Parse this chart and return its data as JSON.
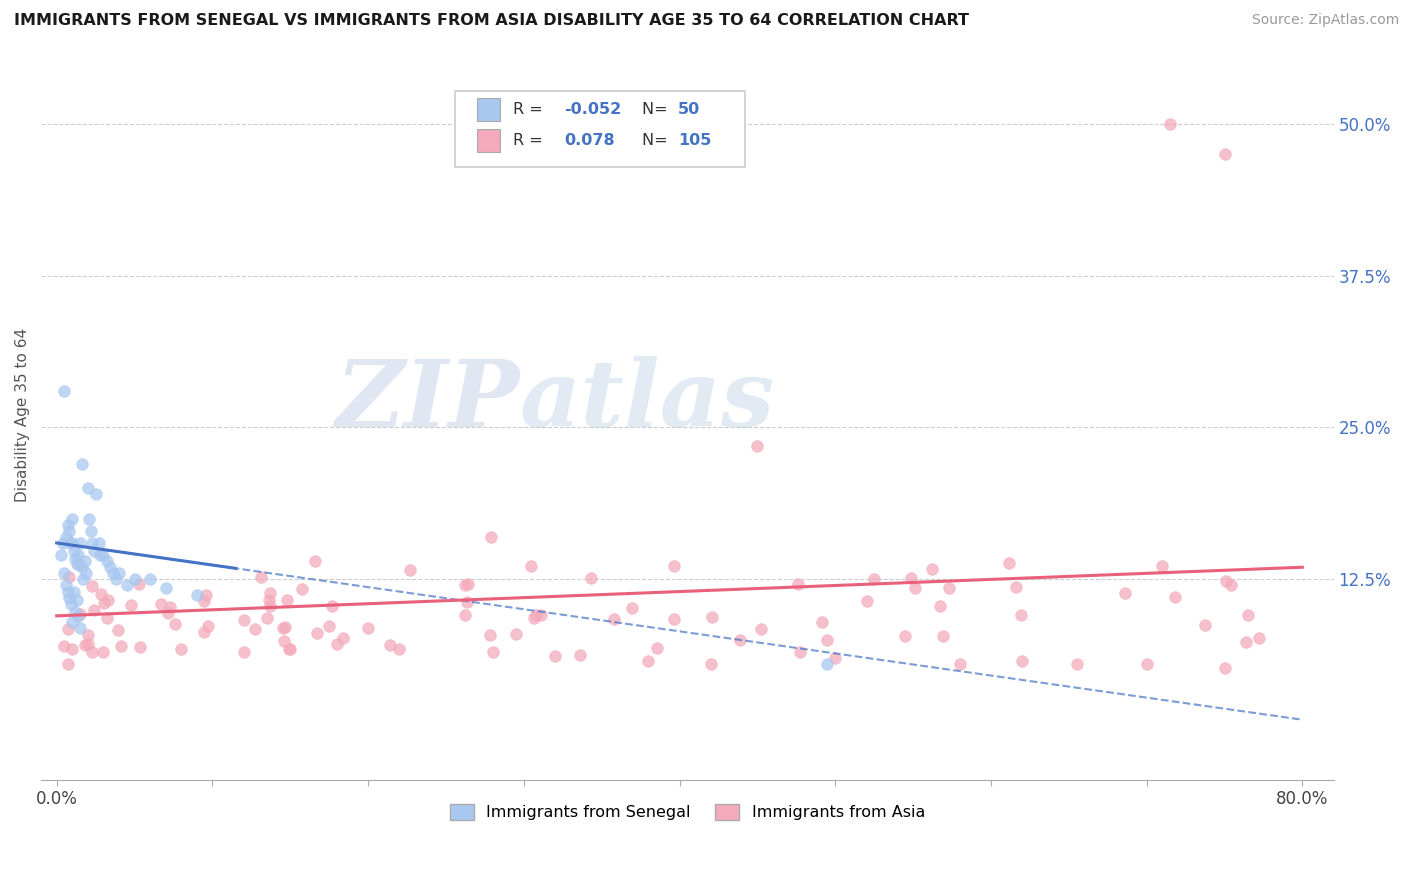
{
  "title": "IMMIGRANTS FROM SENEGAL VS IMMIGRANTS FROM ASIA DISABILITY AGE 35 TO 64 CORRELATION CHART",
  "source": "Source: ZipAtlas.com",
  "ylabel": "Disability Age 35 to 64",
  "xlim": [
    -0.01,
    0.82
  ],
  "ylim": [
    -0.04,
    0.56
  ],
  "xtick_positions": [
    0.0,
    0.1,
    0.2,
    0.3,
    0.4,
    0.5,
    0.6,
    0.7,
    0.8
  ],
  "xticklabels": [
    "0.0%",
    "",
    "",
    "",
    "",
    "",
    "",
    "",
    "80.0%"
  ],
  "ytick_right_labels": [
    "50.0%",
    "37.5%",
    "25.0%",
    "12.5%"
  ],
  "ytick_right_values": [
    0.5,
    0.375,
    0.25,
    0.125
  ],
  "legend_blue_label": "Immigrants from Senegal",
  "legend_pink_label": "Immigrants from Asia",
  "blue_color": "#A8C8F0",
  "pink_color": "#F4AABB",
  "blue_line_color": "#4472C4",
  "pink_line_color": "#E8607A",
  "watermark_zip": "ZIP",
  "watermark_atlas": "atlas",
  "background_color": "#FFFFFF",
  "grid_color": "#CCCCCC",
  "blue_r": "-0.052",
  "blue_n": "50",
  "pink_r": "0.078",
  "pink_n": "105"
}
